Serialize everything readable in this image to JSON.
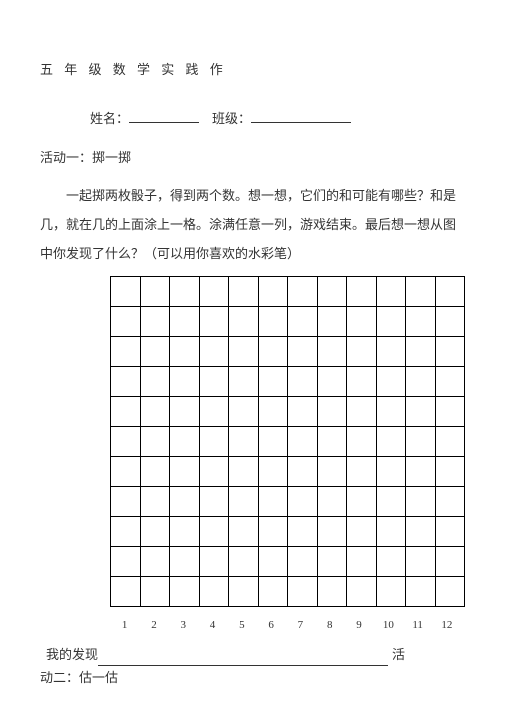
{
  "title": "五 年 级 数 学 实 践 作",
  "fields": {
    "name_label": "姓名：",
    "class_label": "班级："
  },
  "activity1": {
    "heading": "活动一：掷一掷",
    "paragraph": "一起掷两枚骰子，得到两个数。想一想，它们的和可能有哪些？和是 几，就在几的上面涂上一格。涂满任意一列，游戏结束。最后想一想从图 中你发现了什么？（可以用你喜欢的水彩笔）"
  },
  "grid": {
    "rows": 11,
    "cols": 12,
    "x_labels": [
      "1",
      "2",
      "3",
      "4",
      "5",
      "6",
      "7",
      "8",
      "9",
      "10",
      "11",
      "12"
    ]
  },
  "finding": {
    "label": "我的发现",
    "tail": "活"
  },
  "activity2": {
    "heading": "动二：估一估"
  }
}
